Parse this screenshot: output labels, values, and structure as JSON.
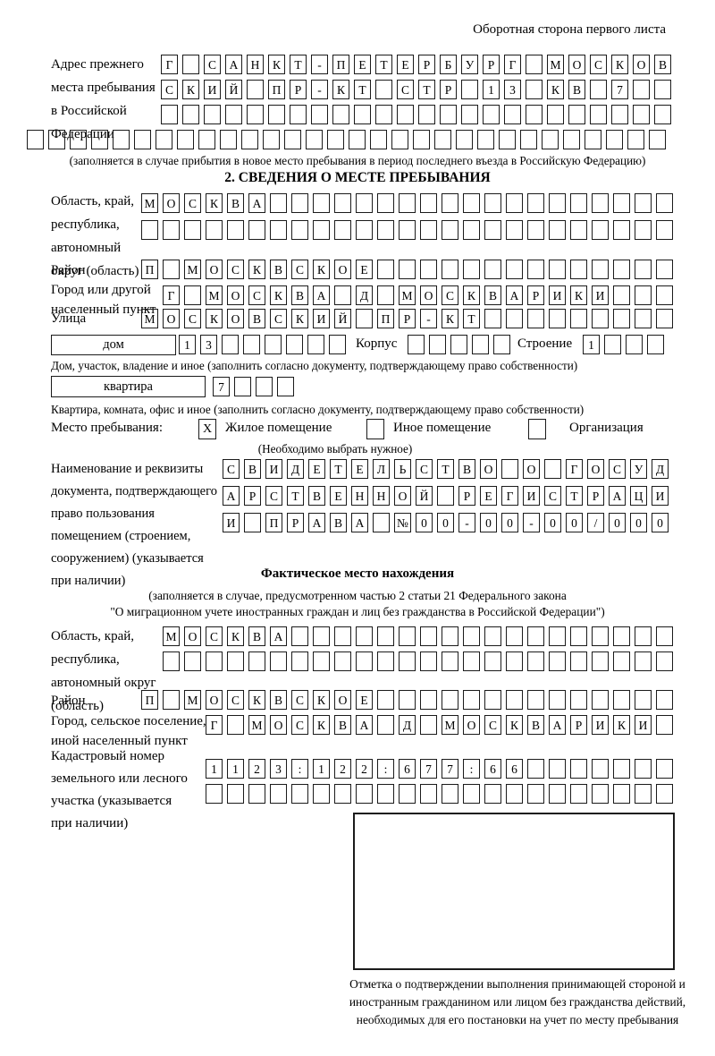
{
  "page": {
    "side_note": "Оборотная сторона первого листа"
  },
  "prev_address": {
    "label": "Адрес прежнего\nместа пребывания\nв Российской\nФедерации",
    "rows": [
      {
        "text": "Г САНКТ-ПЕТЕРБУРГ МОСКОВ",
        "len": 24
      },
      {
        "text": "СКИЙ ПР-КТ СТР 13 КВ 7",
        "len": 24
      },
      {
        "text": "",
        "len": 24
      },
      {
        "text": "",
        "len": 30
      }
    ],
    "note": "(заполняется в случае прибытия в новое место пребывания в период последнего въезда в Российскую Федерацию)"
  },
  "section2": {
    "title": "2. СВЕДЕНИЯ О МЕСТЕ ПРЕБЫВАНИЯ",
    "region": {
      "label": "Область, край,\nреспублика,\nавтономный\nокруг (область)",
      "rows": [
        {
          "text": "МОСКВА",
          "len": 25
        },
        {
          "text": "",
          "len": 25
        }
      ]
    },
    "district": {
      "label": "Район",
      "row": {
        "text": "П МОСКВСКОЕ",
        "len": 25
      }
    },
    "city": {
      "label": "Город или другой\nнаселенный пункт",
      "row": {
        "text": "Г МОСКВА Д МОСКВАРИКИ",
        "len": 24
      }
    },
    "street": {
      "label": "Улица",
      "row": {
        "text": "МОСКОВСКИЙ ПР-КТ",
        "len": 25
      }
    },
    "house": {
      "box_label": "дом",
      "number_row": {
        "text": "13",
        "len": 8
      },
      "korpus_label": "Корпус",
      "korpus_row": {
        "text": "",
        "len": 5
      },
      "stroenie_label": "Строение",
      "stroenie_row": {
        "text": "1",
        "len": 4
      },
      "note": "Дом, участок, владение и иное (заполнить согласно документу, подтверждающему право собственности)"
    },
    "apartment": {
      "box_label": "квартира",
      "row": {
        "text": "7",
        "len": 4
      },
      "note": "Квартира, комната, офис и иное (заполнить согласно документу, подтверждающему право собственности)"
    },
    "place_type": {
      "label": "Место пребывания:",
      "options": [
        {
          "label": "Жилое помещение",
          "mark": "X"
        },
        {
          "label": "Иное помещение",
          "mark": ""
        },
        {
          "label": "Организация",
          "mark": ""
        }
      ],
      "note": "(Необходимо выбрать нужное)"
    },
    "document": {
      "label": "Наименование и реквизиты\nдокумента, подтверждающего\nправо пользования\nпомещением (строением,\nсооружением) (указывается\nпри наличии)",
      "rows": [
        {
          "text": "СВИДЕТЕЛЬСТВО О ГОСУД",
          "len": 21
        },
        {
          "text": "АРСТВЕННОЙ РЕГИСТРАЦИ",
          "len": 21
        },
        {
          "text": "И ПРАВА №00-00-00/000",
          "len": 21
        }
      ]
    }
  },
  "fact": {
    "title": "Фактическое место нахождения",
    "note1": "(заполняется в случае, предусмотренном частью 2 статьи 21 Федерального закона",
    "note2": "\"О миграционном учете иностранных граждан и лиц без гражданства в Российской Федерации\")",
    "region": {
      "label": "Область, край,\nреспублика,\nавтономный округ\n(область)",
      "rows": [
        {
          "text": "МОСКВА",
          "len": 24
        },
        {
          "text": "",
          "len": 24
        }
      ]
    },
    "district": {
      "label": "Район",
      "row": {
        "text": "П МОСКВСКОЕ",
        "len": 25
      }
    },
    "city": {
      "label": "Город, сельское поселение,\nиной населенный пункт",
      "row": {
        "text": "Г МОСКВА Д МОСКВАРИКИ",
        "len": 22
      }
    },
    "cadastre": {
      "label": "Кадастровый номер\nземельного или лесного\nучастка (указывается\nпри наличии)",
      "rows": [
        {
          "text": "1123:122:677:66",
          "len": 22
        },
        {
          "text": "",
          "len": 22
        }
      ]
    }
  },
  "stamp": {
    "caption": "Отметка о подтверждении выполнения принимающей стороной и иностранным гражданином или лицом без гражданства действий, необходимых для его постановки на учет по месту пребывания"
  }
}
